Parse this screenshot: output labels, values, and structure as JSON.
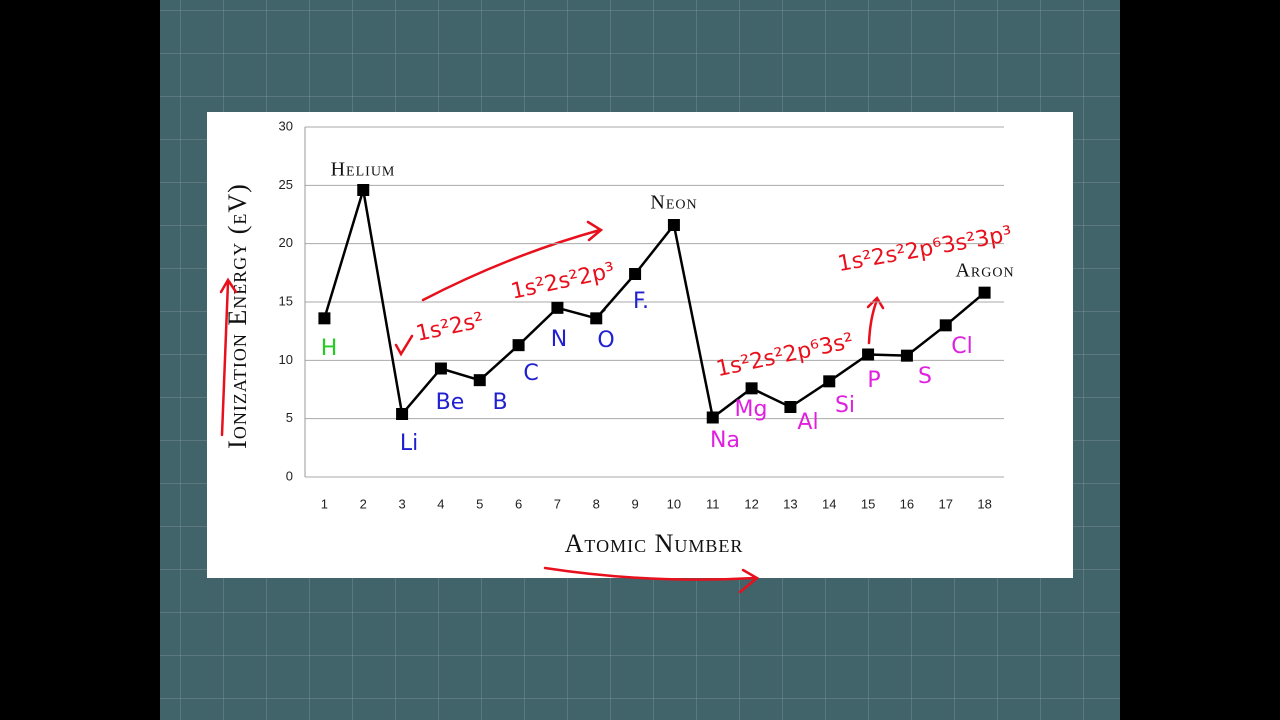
{
  "chart_data": {
    "type": "line",
    "y_label": "Ionization Energy (eV)",
    "x_label": "Atomic Number",
    "x": [
      1,
      2,
      3,
      4,
      5,
      6,
      7,
      8,
      9,
      10,
      11,
      12,
      13,
      14,
      15,
      16,
      17,
      18
    ],
    "series": [
      {
        "color": "#000000",
        "values": [
          13.6,
          24.6,
          5.4,
          9.3,
          8.3,
          11.3,
          14.5,
          13.6,
          17.4,
          21.6,
          5.1,
          7.6,
          6.0,
          8.2,
          10.5,
          10.4,
          13.0,
          15.8
        ]
      }
    ],
    "xlim": [
      0.5,
      18.5
    ],
    "xticks": [
      1,
      2,
      3,
      4,
      5,
      6,
      7,
      8,
      9,
      10,
      11,
      12,
      13,
      14,
      15,
      16,
      17,
      18
    ],
    "ylim": [
      0,
      30
    ],
    "yticks": [
      0,
      5,
      10,
      15,
      20,
      25,
      30
    ],
    "grid": true,
    "annotations": [
      {
        "text": "Helium",
        "color": "#111111"
      },
      {
        "text": "Neon",
        "color": "#111111"
      },
      {
        "text": "Argon",
        "color": "#111111"
      },
      {
        "text": "H",
        "color": "#22cc22"
      },
      {
        "text": "Li",
        "color": "#2020d0"
      },
      {
        "text": "Be",
        "color": "#2020d0"
      },
      {
        "text": "B",
        "color": "#2020d0"
      },
      {
        "text": "C",
        "color": "#2020d0"
      },
      {
        "text": "N",
        "color": "#2020d0"
      },
      {
        "text": "O",
        "color": "#2020d0"
      },
      {
        "text": "F.",
        "color": "#2020d0"
      },
      {
        "text": "Na",
        "color": "#e020e0"
      },
      {
        "text": "Mg",
        "color": "#e020e0"
      },
      {
        "text": "Al",
        "color": "#e020e0"
      },
      {
        "text": "Si",
        "color": "#e020e0"
      },
      {
        "text": "P",
        "color": "#e020e0"
      },
      {
        "text": "S",
        "color": "#e020e0"
      },
      {
        "text": "Cl",
        "color": "#e020e0"
      },
      {
        "text": "1s²2s²",
        "color": "#e8101c"
      },
      {
        "text": "1s²2s²2p³",
        "color": "#e8101c"
      },
      {
        "text": "1s²2s²2p⁶3s²",
        "color": "#e8101c"
      },
      {
        "text": "1s²2s²2p⁶3s²3p³",
        "color": "#e8101c"
      }
    ]
  }
}
